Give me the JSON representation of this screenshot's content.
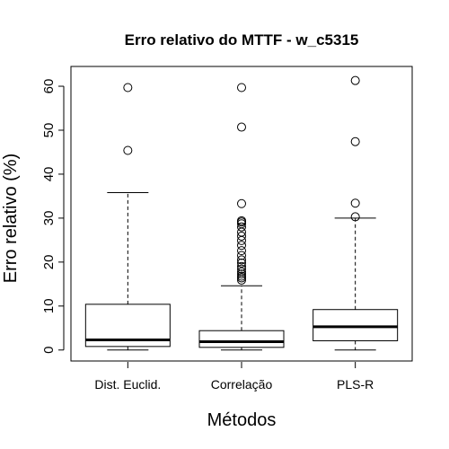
{
  "chart_data": {
    "type": "boxplot",
    "title": "Erro relativo do MTTF - w_c5315",
    "xlabel": "Métodos",
    "ylabel": "Erro relativo (%)",
    "ylim": [
      -2.5,
      64.5
    ],
    "yticks": [
      0,
      10,
      20,
      30,
      40,
      50,
      60
    ],
    "ytick_labels": [
      "0",
      "10",
      "20",
      "30",
      "40",
      "50",
      "60"
    ],
    "categories": [
      "Dist. Euclid.",
      "Correlação",
      "PLS-R"
    ],
    "grid": false,
    "legend": "none",
    "series": [
      {
        "whisker_low": 0.0,
        "q1": 0.8,
        "median": 2.3,
        "q3": 10.4,
        "whisker_high": 35.8,
        "outliers": [
          45.4,
          59.7
        ]
      },
      {
        "whisker_low": 0.0,
        "q1": 0.6,
        "median": 1.9,
        "q3": 4.4,
        "whisker_high": 14.6,
        "outliers": [
          15.9,
          16.4,
          16.8,
          17.3,
          17.8,
          18.4,
          19.0,
          19.8,
          20.5,
          21.5,
          22.6,
          23.8,
          24.9,
          25.9,
          26.8,
          28.0,
          28.7,
          29.1,
          29.4,
          33.3,
          50.7,
          59.7
        ]
      },
      {
        "whisker_low": 0.0,
        "q1": 2.1,
        "median": 5.3,
        "q3": 9.2,
        "whisker_high": 30.0,
        "outliers": [
          30.3,
          33.4,
          47.4,
          61.3
        ]
      }
    ],
    "colors": {
      "box_fill": "#ffffff",
      "stroke": "#000000",
      "outlier_stroke": "#000000"
    }
  }
}
